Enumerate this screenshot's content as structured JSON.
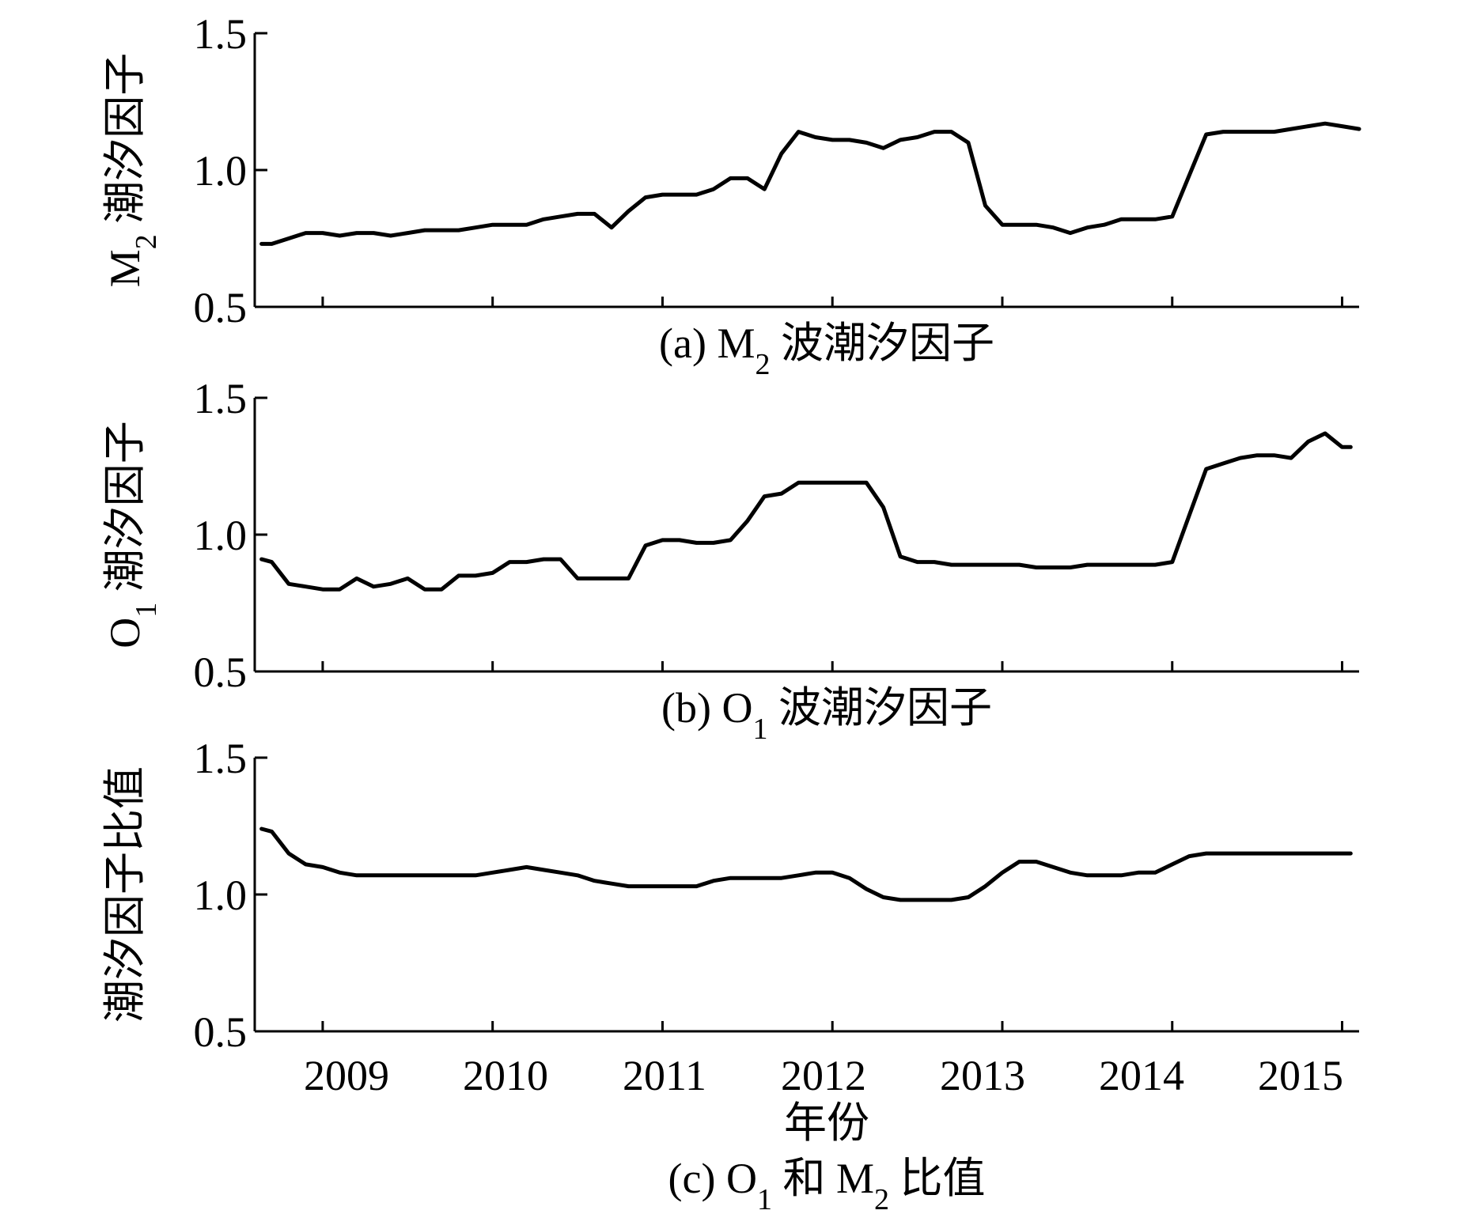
{
  "figure": {
    "xaxis_title": "年份",
    "x_tick_labels": [
      "2009",
      "2010",
      "2011",
      "2012",
      "2013",
      "2014",
      "2015"
    ]
  },
  "chart_data": [
    {
      "type": "line",
      "caption": {
        "prefix": "(a) M",
        "sub": "2",
        "suffix": " 波潮汐因子"
      },
      "ylabel": {
        "prefix": "M",
        "sub": "2",
        "suffix": " 潮汐因子"
      },
      "ylim": [
        0.5,
        1.5
      ],
      "y_ticks": [
        "0.5",
        "1.0",
        "1.5"
      ],
      "xlim": [
        2009.0,
        2015.5
      ],
      "x": [
        2009.04,
        2009.1,
        2009.2,
        2009.3,
        2009.4,
        2009.5,
        2009.6,
        2009.7,
        2009.8,
        2009.9,
        2010.0,
        2010.1,
        2010.2,
        2010.3,
        2010.4,
        2010.5,
        2010.6,
        2010.7,
        2010.8,
        2010.9,
        2011.0,
        2011.1,
        2011.2,
        2011.3,
        2011.4,
        2011.5,
        2011.6,
        2011.7,
        2011.8,
        2011.9,
        2012.0,
        2012.1,
        2012.2,
        2012.3,
        2012.4,
        2012.5,
        2012.6,
        2012.7,
        2012.8,
        2012.9,
        2013.0,
        2013.1,
        2013.2,
        2013.3,
        2013.4,
        2013.5,
        2013.6,
        2013.7,
        2013.8,
        2013.9,
        2014.0,
        2014.1,
        2014.2,
        2014.3,
        2014.4,
        2014.5,
        2014.6,
        2014.7,
        2014.8,
        2014.9,
        2015.0,
        2015.1,
        2015.2,
        2015.3,
        2015.4,
        2015.5
      ],
      "values": [
        0.73,
        0.73,
        0.75,
        0.77,
        0.77,
        0.76,
        0.77,
        0.77,
        0.76,
        0.77,
        0.78,
        0.78,
        0.78,
        0.79,
        0.8,
        0.8,
        0.8,
        0.82,
        0.83,
        0.84,
        0.84,
        0.79,
        0.85,
        0.9,
        0.91,
        0.91,
        0.91,
        0.93,
        0.97,
        0.97,
        0.93,
        1.06,
        1.14,
        1.12,
        1.11,
        1.11,
        1.1,
        1.08,
        1.11,
        1.12,
        1.14,
        1.14,
        1.1,
        0.87,
        0.8,
        0.8,
        0.8,
        0.79,
        0.77,
        0.79,
        0.8,
        0.82,
        0.82,
        0.82,
        0.83,
        0.98,
        1.13,
        1.14,
        1.14,
        1.14,
        1.14,
        1.15,
        1.16,
        1.17,
        1.16,
        1.15
      ]
    },
    {
      "type": "line",
      "caption": {
        "prefix": "(b) O",
        "sub": "1",
        "suffix": " 波潮汐因子"
      },
      "ylabel": {
        "prefix": "O",
        "sub": "1",
        "suffix": " 潮汐因子"
      },
      "ylim": [
        0.5,
        1.5
      ],
      "y_ticks": [
        "0.5",
        "1.0",
        "1.5"
      ],
      "xlim": [
        2009.0,
        2015.5
      ],
      "x": [
        2009.04,
        2009.1,
        2009.2,
        2009.3,
        2009.4,
        2009.5,
        2009.6,
        2009.7,
        2009.8,
        2009.9,
        2010.0,
        2010.1,
        2010.2,
        2010.3,
        2010.4,
        2010.5,
        2010.6,
        2010.7,
        2010.8,
        2010.9,
        2011.0,
        2011.1,
        2011.2,
        2011.3,
        2011.4,
        2011.5,
        2011.6,
        2011.7,
        2011.8,
        2011.9,
        2012.0,
        2012.1,
        2012.2,
        2012.3,
        2012.4,
        2012.5,
        2012.6,
        2012.7,
        2012.8,
        2012.9,
        2013.0,
        2013.1,
        2013.2,
        2013.3,
        2013.4,
        2013.5,
        2013.6,
        2013.7,
        2013.8,
        2013.9,
        2014.0,
        2014.1,
        2014.2,
        2014.3,
        2014.4,
        2014.5,
        2014.6,
        2014.7,
        2014.8,
        2014.9,
        2015.0,
        2015.1,
        2015.2,
        2015.3,
        2015.4,
        2015.45
      ],
      "values": [
        0.91,
        0.9,
        0.82,
        0.81,
        0.8,
        0.8,
        0.84,
        0.81,
        0.82,
        0.84,
        0.8,
        0.8,
        0.85,
        0.85,
        0.86,
        0.9,
        0.9,
        0.91,
        0.91,
        0.84,
        0.84,
        0.84,
        0.84,
        0.96,
        0.98,
        0.98,
        0.97,
        0.97,
        0.98,
        1.05,
        1.14,
        1.15,
        1.19,
        1.19,
        1.19,
        1.19,
        1.19,
        1.1,
        0.92,
        0.9,
        0.9,
        0.89,
        0.89,
        0.89,
        0.89,
        0.89,
        0.88,
        0.88,
        0.88,
        0.89,
        0.89,
        0.89,
        0.89,
        0.89,
        0.9,
        1.07,
        1.24,
        1.26,
        1.28,
        1.29,
        1.29,
        1.28,
        1.34,
        1.37,
        1.32,
        1.32
      ]
    },
    {
      "type": "line",
      "caption": {
        "prefix": "(c) O",
        "sub": "1",
        "suffix": " 和 M",
        "sub2": "2",
        "suffix2": " 比值"
      },
      "ylabel": {
        "prefix": "潮汐因子比值",
        "sub": "",
        "suffix": ""
      },
      "ylim": [
        0.5,
        1.5
      ],
      "y_ticks": [
        "0.5",
        "1.0",
        "1.5"
      ],
      "xlim": [
        2009.0,
        2015.5
      ],
      "x": [
        2009.04,
        2009.1,
        2009.2,
        2009.3,
        2009.4,
        2009.5,
        2009.6,
        2009.7,
        2009.8,
        2009.9,
        2010.0,
        2010.1,
        2010.2,
        2010.3,
        2010.4,
        2010.5,
        2010.6,
        2010.7,
        2010.8,
        2010.9,
        2011.0,
        2011.1,
        2011.2,
        2011.3,
        2011.4,
        2011.5,
        2011.6,
        2011.7,
        2011.8,
        2011.9,
        2012.0,
        2012.1,
        2012.2,
        2012.3,
        2012.4,
        2012.5,
        2012.6,
        2012.7,
        2012.8,
        2012.9,
        2013.0,
        2013.1,
        2013.2,
        2013.3,
        2013.4,
        2013.5,
        2013.6,
        2013.7,
        2013.8,
        2013.9,
        2014.0,
        2014.1,
        2014.2,
        2014.3,
        2014.4,
        2014.5,
        2014.6,
        2014.7,
        2014.8,
        2014.9,
        2015.0,
        2015.1,
        2015.2,
        2015.3,
        2015.4,
        2015.45
      ],
      "values": [
        1.24,
        1.23,
        1.15,
        1.11,
        1.1,
        1.08,
        1.07,
        1.07,
        1.07,
        1.07,
        1.07,
        1.07,
        1.07,
        1.07,
        1.08,
        1.09,
        1.1,
        1.09,
        1.08,
        1.07,
        1.05,
        1.04,
        1.03,
        1.03,
        1.03,
        1.03,
        1.03,
        1.05,
        1.06,
        1.06,
        1.06,
        1.06,
        1.07,
        1.08,
        1.08,
        1.06,
        1.02,
        0.99,
        0.98,
        0.98,
        0.98,
        0.98,
        0.99,
        1.03,
        1.08,
        1.12,
        1.12,
        1.1,
        1.08,
        1.07,
        1.07,
        1.07,
        1.08,
        1.08,
        1.11,
        1.14,
        1.15,
        1.15,
        1.15,
        1.15,
        1.15,
        1.15,
        1.15,
        1.15,
        1.15,
        1.15
      ]
    }
  ]
}
